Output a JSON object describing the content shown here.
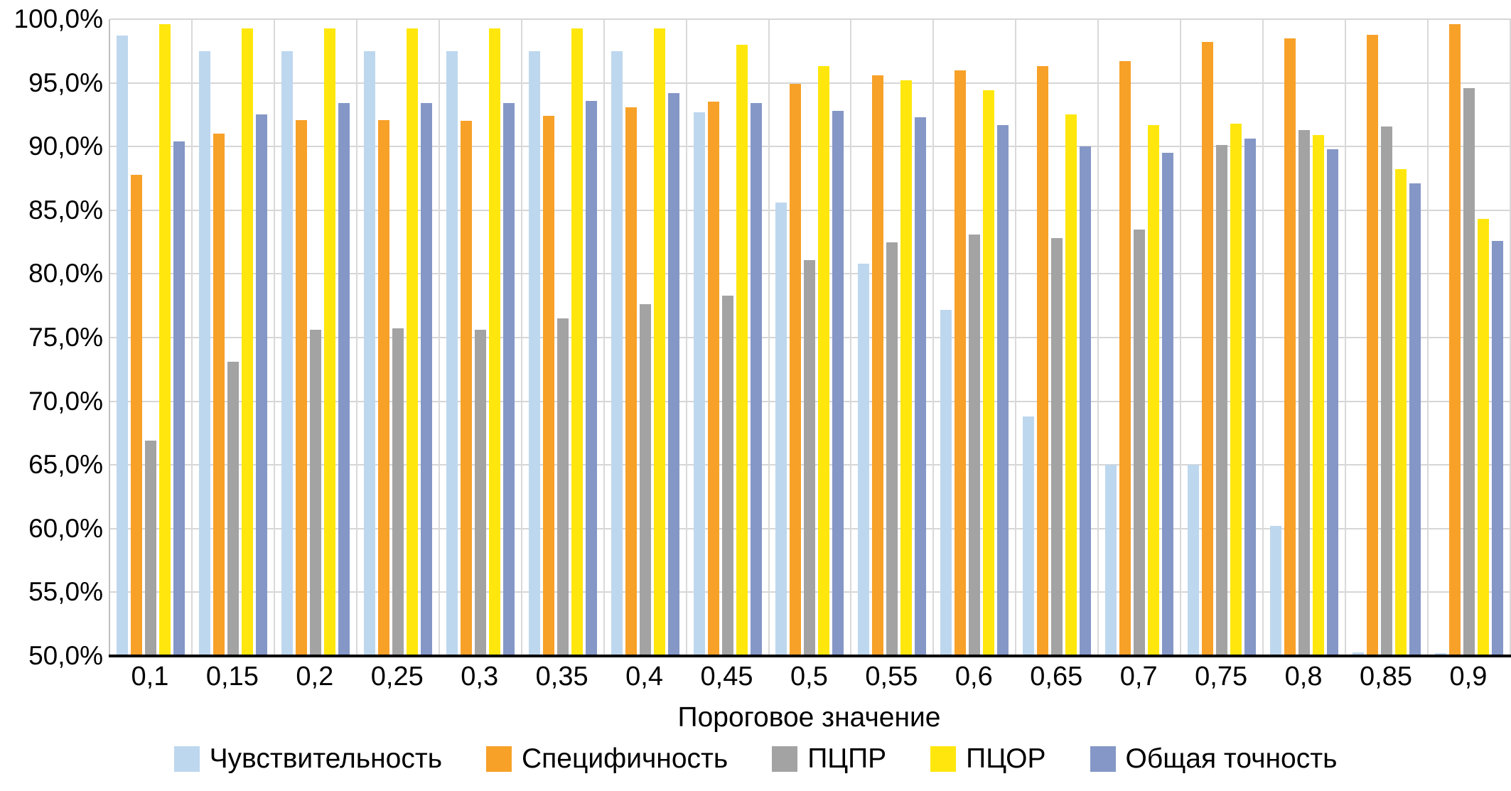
{
  "chart_data": {
    "type": "bar",
    "title": "",
    "xlabel": "Пороговое значение",
    "ylabel": "",
    "ylim": [
      50,
      100
    ],
    "ytick_step": 5,
    "y_tick_labels": [
      "100,0%",
      "95,0%",
      "90,0%",
      "85,0%",
      "80,0%",
      "75,0%",
      "70,0%",
      "65,0%",
      "60,0%",
      "55,0%",
      "50,0%"
    ],
    "grid": {
      "horizontal": true,
      "vertical": true
    },
    "legend_position": "bottom",
    "categories": [
      "0,1",
      "0,15",
      "0,2",
      "0,25",
      "0,3",
      "0,35",
      "0,4",
      "0,45",
      "0,5",
      "0,55",
      "0,6",
      "0,65",
      "0,7",
      "0,75",
      "0,8",
      "0,85",
      "0,9"
    ],
    "series": [
      {
        "name": "Чувствительность",
        "color": "#BDD7EE",
        "values": [
          98.7,
          97.5,
          97.5,
          97.5,
          97.5,
          97.5,
          97.5,
          92.7,
          85.6,
          80.8,
          77.2,
          68.8,
          65.0,
          65.0,
          60.2,
          50.3,
          50.2
        ]
      },
      {
        "name": "Специфичность",
        "color": "#F7A128",
        "values": [
          87.8,
          91.0,
          92.1,
          92.1,
          92.0,
          92.4,
          93.1,
          93.5,
          94.9,
          95.6,
          96.0,
          96.3,
          96.7,
          98.2,
          98.5,
          98.8,
          99.6
        ]
      },
      {
        "name": "ПЦПР",
        "color": "#A3A3A3",
        "values": [
          66.9,
          73.1,
          75.6,
          75.7,
          75.6,
          76.5,
          77.6,
          78.3,
          81.1,
          82.5,
          83.1,
          82.8,
          83.5,
          90.1,
          91.3,
          91.6,
          94.6
        ]
      },
      {
        "name": "ПЦОР",
        "color": "#FFE70D",
        "values": [
          99.6,
          99.3,
          99.3,
          99.3,
          99.3,
          99.3,
          99.3,
          98.0,
          96.3,
          95.2,
          94.4,
          92.5,
          91.7,
          91.8,
          90.9,
          88.2,
          84.3
        ]
      },
      {
        "name": "Общая точность",
        "color": "#8497C6",
        "values": [
          90.4,
          92.5,
          93.4,
          93.4,
          93.4,
          93.6,
          94.2,
          93.4,
          92.8,
          92.3,
          91.7,
          90.0,
          89.5,
          90.6,
          89.8,
          87.1,
          82.6
        ]
      }
    ]
  },
  "axis": {
    "x_title": "Пороговое значение"
  }
}
